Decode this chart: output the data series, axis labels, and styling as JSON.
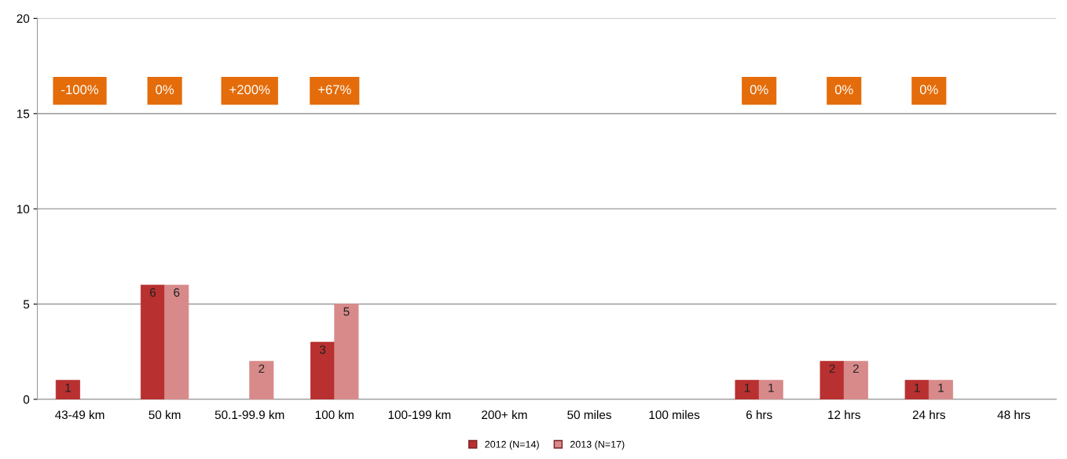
{
  "chart_data": {
    "type": "bar",
    "categories": [
      "43-49 km",
      "50 km",
      "50.1-99.9 km",
      "100 km",
      "100-199 km",
      "200+ km",
      "50 miles",
      "100 miles",
      "6 hrs",
      "12 hrs",
      "24 hrs",
      "48 hrs"
    ],
    "series": [
      {
        "name": "2012 (N=14)",
        "color": "#b83030",
        "values": [
          1,
          6,
          null,
          3,
          null,
          null,
          null,
          null,
          1,
          2,
          1,
          null
        ]
      },
      {
        "name": "2013 (N=17)",
        "color": "#d88a8a",
        "values": [
          null,
          6,
          2,
          5,
          null,
          null,
          null,
          null,
          1,
          2,
          1,
          null
        ]
      }
    ],
    "data_labels": true,
    "ylim": [
      0,
      20
    ],
    "yticks": [
      0,
      5,
      10,
      15,
      20
    ],
    "grid": "y",
    "legend": "bottom",
    "annotations": [
      "-100%",
      "0%",
      "+200%",
      "+67%",
      "0%",
      "0%",
      "0%"
    ]
  }
}
